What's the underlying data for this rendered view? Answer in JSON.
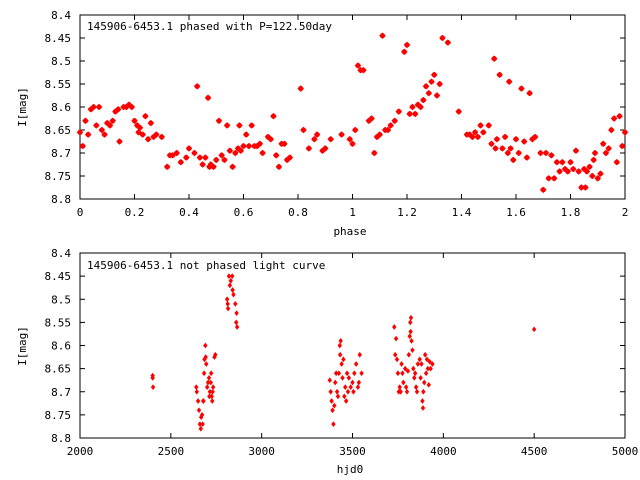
{
  "chart_data": [
    {
      "type": "scatter",
      "title": "145906-6453.1 phased with P=122.50day",
      "xlabel": "phase",
      "ylabel": "I[mag]",
      "xlim": [
        0,
        2
      ],
      "ylim": [
        8.4,
        8.8
      ],
      "y_inverted": true,
      "x_ticks": [
        "0",
        "0.2",
        "0.4",
        "0.6",
        "0.8",
        "1",
        "1.2",
        "1.4",
        "1.6",
        "1.8",
        "2"
      ],
      "y_ticks": [
        "8.4",
        "8.45",
        "8.5",
        "8.55",
        "8.6",
        "8.65",
        "8.7",
        "8.75",
        "8.8"
      ],
      "marker_color": "#ff0000",
      "points": [
        [
          0.0,
          8.655
        ],
        [
          0.01,
          8.685
        ],
        [
          0.02,
          8.63
        ],
        [
          0.03,
          8.66
        ],
        [
          0.04,
          8.605
        ],
        [
          0.05,
          8.6
        ],
        [
          0.06,
          8.64
        ],
        [
          0.07,
          8.6
        ],
        [
          0.08,
          8.65
        ],
        [
          0.09,
          8.66
        ],
        [
          0.1,
          8.635
        ],
        [
          0.11,
          8.64
        ],
        [
          0.12,
          8.63
        ],
        [
          0.13,
          8.61
        ],
        [
          0.14,
          8.605
        ],
        [
          0.145,
          8.675
        ],
        [
          0.16,
          8.6
        ],
        [
          0.17,
          8.6
        ],
        [
          0.18,
          8.595
        ],
        [
          0.19,
          8.6
        ],
        [
          0.2,
          8.63
        ],
        [
          0.21,
          8.64
        ],
        [
          0.215,
          8.655
        ],
        [
          0.22,
          8.645
        ],
        [
          0.23,
          8.66
        ],
        [
          0.24,
          8.62
        ],
        [
          0.25,
          8.67
        ],
        [
          0.26,
          8.635
        ],
        [
          0.27,
          8.665
        ],
        [
          0.28,
          8.66
        ],
        [
          0.3,
          8.665
        ],
        [
          0.32,
          8.73
        ],
        [
          0.33,
          8.705
        ],
        [
          0.34,
          8.705
        ],
        [
          0.355,
          8.7
        ],
        [
          0.37,
          8.72
        ],
        [
          0.39,
          8.71
        ],
        [
          0.4,
          8.69
        ],
        [
          0.42,
          8.7
        ],
        [
          0.43,
          8.555
        ],
        [
          0.44,
          8.71
        ],
        [
          0.45,
          8.725
        ],
        [
          0.46,
          8.71
        ],
        [
          0.47,
          8.58
        ],
        [
          0.475,
          8.73
        ],
        [
          0.48,
          8.725
        ],
        [
          0.49,
          8.73
        ],
        [
          0.5,
          8.715
        ],
        [
          0.51,
          8.63
        ],
        [
          0.52,
          8.705
        ],
        [
          0.53,
          8.715
        ],
        [
          0.54,
          8.64
        ],
        [
          0.55,
          8.695
        ],
        [
          0.56,
          8.73
        ],
        [
          0.57,
          8.7
        ],
        [
          0.58,
          8.69
        ],
        [
          0.585,
          8.64
        ],
        [
          0.59,
          8.695
        ],
        [
          0.6,
          8.685
        ],
        [
          0.61,
          8.66
        ],
        [
          0.62,
          8.685
        ],
        [
          0.63,
          8.64
        ],
        [
          0.64,
          8.685
        ],
        [
          0.65,
          8.685
        ],
        [
          0.66,
          8.68
        ],
        [
          0.67,
          8.7
        ],
        [
          0.69,
          8.665
        ],
        [
          0.7,
          8.67
        ],
        [
          0.71,
          8.62
        ],
        [
          0.72,
          8.705
        ],
        [
          0.73,
          8.73
        ],
        [
          0.74,
          8.68
        ],
        [
          0.75,
          8.68
        ],
        [
          0.76,
          8.715
        ],
        [
          0.77,
          8.71
        ],
        [
          0.81,
          8.56
        ],
        [
          0.82,
          8.65
        ],
        [
          0.84,
          8.69
        ],
        [
          0.86,
          8.67
        ],
        [
          0.87,
          8.66
        ],
        [
          0.89,
          8.695
        ],
        [
          0.9,
          8.69
        ],
        [
          0.92,
          8.67
        ],
        [
          0.96,
          8.66
        ],
        [
          0.99,
          8.67
        ],
        [
          1.0,
          8.68
        ],
        [
          1.01,
          8.65
        ],
        [
          1.02,
          8.51
        ],
        [
          1.03,
          8.52
        ],
        [
          1.04,
          8.52
        ],
        [
          1.06,
          8.63
        ],
        [
          1.07,
          8.625
        ],
        [
          1.08,
          8.7
        ],
        [
          1.09,
          8.665
        ],
        [
          1.1,
          8.66
        ],
        [
          1.11,
          8.445
        ],
        [
          1.12,
          8.65
        ],
        [
          1.13,
          8.65
        ],
        [
          1.14,
          8.64
        ],
        [
          1.155,
          8.63
        ],
        [
          1.17,
          8.61
        ],
        [
          1.19,
          8.48
        ],
        [
          1.2,
          8.465
        ],
        [
          1.21,
          8.615
        ],
        [
          1.22,
          8.6
        ],
        [
          1.23,
          8.615
        ],
        [
          1.24,
          8.595
        ],
        [
          1.25,
          8.6
        ],
        [
          1.26,
          8.585
        ],
        [
          1.27,
          8.555
        ],
        [
          1.28,
          8.57
        ],
        [
          1.29,
          8.545
        ],
        [
          1.3,
          8.53
        ],
        [
          1.31,
          8.575
        ],
        [
          1.32,
          8.55
        ],
        [
          1.33,
          8.45
        ],
        [
          1.35,
          8.46
        ],
        [
          1.39,
          8.61
        ],
        [
          1.42,
          8.66
        ],
        [
          1.43,
          8.66
        ],
        [
          1.44,
          8.665
        ],
        [
          1.45,
          8.655
        ],
        [
          1.46,
          8.665
        ],
        [
          1.47,
          8.64
        ],
        [
          1.48,
          8.655
        ],
        [
          1.5,
          8.64
        ],
        [
          1.51,
          8.68
        ],
        [
          1.52,
          8.495
        ],
        [
          1.525,
          8.69
        ],
        [
          1.53,
          8.67
        ],
        [
          1.54,
          8.53
        ],
        [
          1.55,
          8.69
        ],
        [
          1.56,
          8.665
        ],
        [
          1.57,
          8.7
        ],
        [
          1.575,
          8.545
        ],
        [
          1.58,
          8.69
        ],
        [
          1.59,
          8.715
        ],
        [
          1.6,
          8.67
        ],
        [
          1.61,
          8.7
        ],
        [
          1.62,
          8.56
        ],
        [
          1.63,
          8.675
        ],
        [
          1.64,
          8.71
        ],
        [
          1.65,
          8.57
        ],
        [
          1.66,
          8.67
        ],
        [
          1.67,
          8.665
        ],
        [
          1.69,
          8.7
        ],
        [
          1.7,
          8.78
        ],
        [
          1.71,
          8.7
        ],
        [
          1.72,
          8.755
        ],
        [
          1.73,
          8.705
        ],
        [
          1.74,
          8.755
        ],
        [
          1.75,
          8.72
        ],
        [
          1.76,
          8.74
        ],
        [
          1.77,
          8.72
        ],
        [
          1.78,
          8.735
        ],
        [
          1.79,
          8.74
        ],
        [
          1.8,
          8.72
        ],
        [
          1.81,
          8.735
        ],
        [
          1.82,
          8.695
        ],
        [
          1.83,
          8.74
        ],
        [
          1.84,
          8.775
        ],
        [
          1.85,
          8.735
        ],
        [
          1.855,
          8.775
        ],
        [
          1.86,
          8.74
        ],
        [
          1.87,
          8.73
        ],
        [
          1.88,
          8.75
        ],
        [
          1.885,
          8.715
        ],
        [
          1.89,
          8.7
        ],
        [
          1.9,
          8.755
        ],
        [
          1.91,
          8.745
        ],
        [
          1.92,
          8.68
        ],
        [
          1.93,
          8.7
        ],
        [
          1.94,
          8.69
        ],
        [
          1.95,
          8.65
        ],
        [
          1.96,
          8.625
        ],
        [
          1.97,
          8.72
        ],
        [
          1.98,
          8.62
        ],
        [
          1.99,
          8.685
        ],
        [
          2.0,
          8.655
        ]
      ]
    },
    {
      "type": "scatter",
      "title": "145906-6453.1 not phased light curve",
      "xlabel": "hjd0",
      "ylabel": "I[mag]",
      "xlim": [
        2000,
        5000
      ],
      "ylim": [
        8.4,
        8.8
      ],
      "y_inverted": true,
      "x_ticks": [
        "2000",
        "2500",
        "3000",
        "3500",
        "4000",
        "4500",
        "5000"
      ],
      "y_ticks": [
        "8.4",
        "8.45",
        "8.5",
        "8.55",
        "8.6",
        "8.65",
        "8.7",
        "8.75",
        "8.8"
      ],
      "marker_color": "#ff0000",
      "points": [
        [
          2400,
          8.665
        ],
        [
          2400,
          8.67
        ],
        [
          2402,
          8.69
        ],
        [
          2640,
          8.69
        ],
        [
          2643,
          8.7
        ],
        [
          2650,
          8.72
        ],
        [
          2655,
          8.74
        ],
        [
          2660,
          8.77
        ],
        [
          2665,
          8.78
        ],
        [
          2667,
          8.755
        ],
        [
          2672,
          8.75
        ],
        [
          2675,
          8.77
        ],
        [
          2678,
          8.72
        ],
        [
          2680,
          8.72
        ],
        [
          2683,
          8.66
        ],
        [
          2685,
          8.63
        ],
        [
          2690,
          8.6
        ],
        [
          2692,
          8.625
        ],
        [
          2695,
          8.64
        ],
        [
          2700,
          8.69
        ],
        [
          2705,
          8.68
        ],
        [
          2710,
          8.67
        ],
        [
          2712,
          8.71
        ],
        [
          2715,
          8.7
        ],
        [
          2720,
          8.68
        ],
        [
          2722,
          8.66
        ],
        [
          2725,
          8.71
        ],
        [
          2728,
          8.72
        ],
        [
          2730,
          8.7
        ],
        [
          2733,
          8.69
        ],
        [
          2740,
          8.625
        ],
        [
          2745,
          8.62
        ],
        [
          2810,
          8.5
        ],
        [
          2813,
          8.51
        ],
        [
          2815,
          8.52
        ],
        [
          2820,
          8.45
        ],
        [
          2825,
          8.47
        ],
        [
          2830,
          8.46
        ],
        [
          2838,
          8.45
        ],
        [
          2840,
          8.48
        ],
        [
          2845,
          8.49
        ],
        [
          2855,
          8.51
        ],
        [
          2860,
          8.55
        ],
        [
          2862,
          8.53
        ],
        [
          2865,
          8.56
        ],
        [
          3375,
          8.675
        ],
        [
          3380,
          8.7
        ],
        [
          3385,
          8.72
        ],
        [
          3390,
          8.74
        ],
        [
          3395,
          8.77
        ],
        [
          3400,
          8.73
        ],
        [
          3405,
          8.68
        ],
        [
          3410,
          8.66
        ],
        [
          3415,
          8.7
        ],
        [
          3420,
          8.71
        ],
        [
          3425,
          8.66
        ],
        [
          3430,
          8.6
        ],
        [
          3432,
          8.62
        ],
        [
          3435,
          8.59
        ],
        [
          3440,
          8.64
        ],
        [
          3445,
          8.67
        ],
        [
          3450,
          8.63
        ],
        [
          3455,
          8.71
        ],
        [
          3460,
          8.69
        ],
        [
          3465,
          8.72
        ],
        [
          3470,
          8.66
        ],
        [
          3475,
          8.7
        ],
        [
          3480,
          8.67
        ],
        [
          3490,
          8.69
        ],
        [
          3500,
          8.68
        ],
        [
          3505,
          8.7
        ],
        [
          3510,
          8.66
        ],
        [
          3520,
          8.64
        ],
        [
          3530,
          8.69
        ],
        [
          3535,
          8.68
        ],
        [
          3540,
          8.62
        ],
        [
          3550,
          8.66
        ],
        [
          3730,
          8.56
        ],
        [
          3735,
          8.62
        ],
        [
          3740,
          8.585
        ],
        [
          3745,
          8.63
        ],
        [
          3750,
          8.66
        ],
        [
          3755,
          8.7
        ],
        [
          3760,
          8.69
        ],
        [
          3765,
          8.7
        ],
        [
          3770,
          8.64
        ],
        [
          3775,
          8.66
        ],
        [
          3780,
          8.68
        ],
        [
          3790,
          8.65
        ],
        [
          3795,
          8.69
        ],
        [
          3800,
          8.7
        ],
        [
          3805,
          8.655
        ],
        [
          3810,
          8.62
        ],
        [
          3815,
          8.58
        ],
        [
          3818,
          8.55
        ],
        [
          3820,
          8.57
        ],
        [
          3822,
          8.54
        ],
        [
          3825,
          8.59
        ],
        [
          3830,
          8.61
        ],
        [
          3835,
          8.65
        ],
        [
          3840,
          8.67
        ],
        [
          3845,
          8.66
        ],
        [
          3850,
          8.69
        ],
        [
          3855,
          8.7
        ],
        [
          3860,
          8.64
        ],
        [
          3870,
          8.63
        ],
        [
          3875,
          8.67
        ],
        [
          3880,
          8.64
        ],
        [
          3885,
          8.72
        ],
        [
          3888,
          8.735
        ],
        [
          3890,
          8.7
        ],
        [
          3895,
          8.68
        ],
        [
          3900,
          8.62
        ],
        [
          3905,
          8.66
        ],
        [
          3910,
          8.63
        ],
        [
          3915,
          8.65
        ],
        [
          3920,
          8.685
        ],
        [
          3925,
          8.635
        ],
        [
          3930,
          8.65
        ],
        [
          3940,
          8.64
        ],
        [
          4500,
          8.565
        ]
      ]
    }
  ]
}
